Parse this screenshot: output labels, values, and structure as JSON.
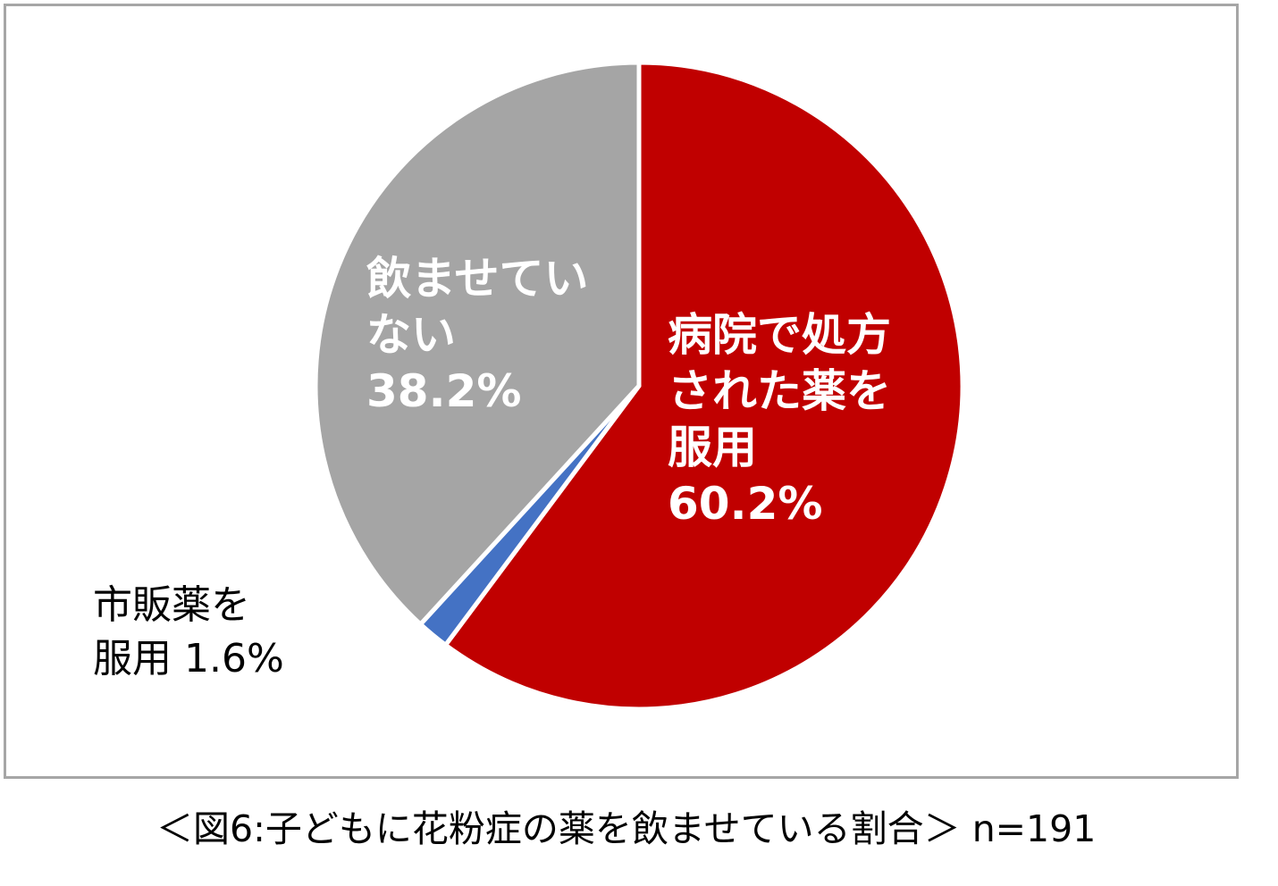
{
  "chart_data": {
    "type": "pie",
    "title": "",
    "slices": [
      {
        "label_lines": [
          "病院で処方",
          "された薬を",
          "服用"
        ],
        "value": 60.2,
        "value_label": "60.2%",
        "color": "#c00000"
      },
      {
        "label_lines": [
          "市販薬を",
          "服用"
        ],
        "value": 1.6,
        "value_label": "1.6%",
        "color": "#4472c4"
      },
      {
        "label_lines": [
          "飲ませてい",
          "ない"
        ],
        "value": 38.2,
        "value_label": "38.2%",
        "color": "#a5a5a5"
      }
    ],
    "start_angle": "12 o'clock",
    "direction": "clockwise",
    "slice_border_color": "#ffffff"
  },
  "caption": "＜図6:子どもに花粉症の薬を飲ませている割合＞ n=191"
}
